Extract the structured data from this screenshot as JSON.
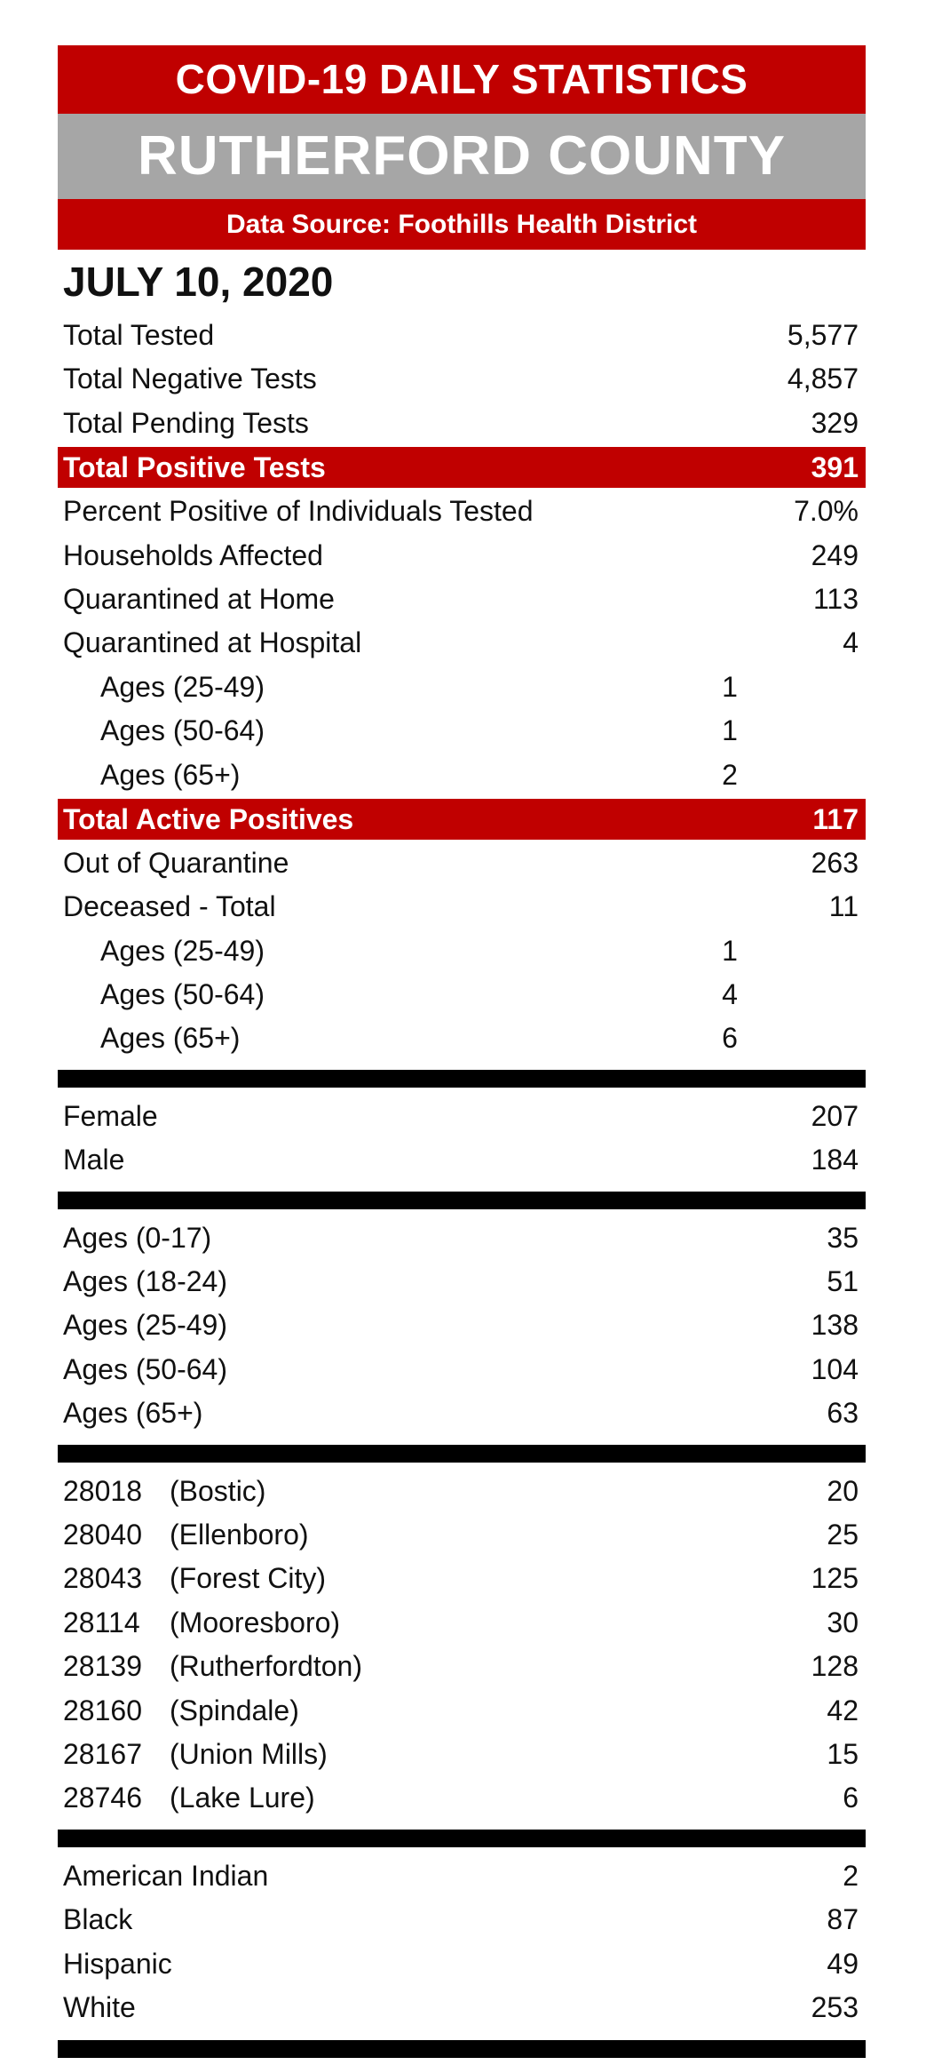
{
  "header": {
    "title": "COVID-19 DAILY STATISTICS",
    "county": "RUTHERFORD COUNTY",
    "source": "Data Source:  Foothills Health District"
  },
  "date": "JULY 10, 2020",
  "testing": [
    {
      "label": "Total Tested",
      "value": "5,577"
    },
    {
      "label": "Total Negative Tests",
      "value": "4,857"
    },
    {
      "label": "Total Pending Tests",
      "value": "329"
    }
  ],
  "total_positive": {
    "label": "Total Positive Tests",
    "value": "391"
  },
  "positive_details": [
    {
      "label": "Percent Positive of Individuals Tested",
      "value": "7.0%"
    },
    {
      "label": "Households Affected",
      "value": "249"
    },
    {
      "label": "Quarantined at Home",
      "value": "113"
    },
    {
      "label": "Quarantined at Hospital",
      "value": "4"
    }
  ],
  "hospital_ages": [
    {
      "label": "Ages (25-49)",
      "value": "1"
    },
    {
      "label": "Ages (50-64)",
      "value": "1"
    },
    {
      "label": "Ages (65+)",
      "value": "2"
    }
  ],
  "total_active": {
    "label": "Total Active Positives",
    "value": "117"
  },
  "outcomes": [
    {
      "label": "Out of Quarantine",
      "value": "263"
    },
    {
      "label": "Deceased - Total",
      "value": "11"
    }
  ],
  "deceased_ages": [
    {
      "label": "Ages (25-49)",
      "value": "1"
    },
    {
      "label": "Ages (50-64)",
      "value": "4"
    },
    {
      "label": "Ages (65+)",
      "value": "6"
    }
  ],
  "sex": [
    {
      "label": "Female",
      "value": "207"
    },
    {
      "label": "Male",
      "value": "184"
    }
  ],
  "age_groups": [
    {
      "label": "Ages (0-17)",
      "value": "35"
    },
    {
      "label": "Ages (18-24)",
      "value": "51"
    },
    {
      "label": "Ages (25-49)",
      "value": "138"
    },
    {
      "label": "Ages (50-64)",
      "value": "104"
    },
    {
      "label": "Ages (65+)",
      "value": "63"
    }
  ],
  "zip_codes": [
    {
      "zip": "28018",
      "place": "(Bostic)",
      "value": "20"
    },
    {
      "zip": "28040",
      "place": "(Ellenboro)",
      "value": "25"
    },
    {
      "zip": "28043",
      "place": "(Forest City)",
      "value": "125"
    },
    {
      "zip": "28114",
      "place": "(Mooresboro)",
      "value": "30"
    },
    {
      "zip": "28139",
      "place": "(Rutherfordton)",
      "value": "128"
    },
    {
      "zip": "28160",
      "place": "(Spindale)",
      "value": "42"
    },
    {
      "zip": "28167",
      "place": "(Union Mills)",
      "value": "15"
    },
    {
      "zip": "28746",
      "place": "(Lake Lure)",
      "value": "6"
    }
  ],
  "race": [
    {
      "label": "American Indian",
      "value": "2"
    },
    {
      "label": "Black",
      "value": "87"
    },
    {
      "label": "Hispanic",
      "value": "49"
    },
    {
      "label": "White",
      "value": "253"
    }
  ],
  "colors": {
    "accent_red": "#c00000",
    "banner_grey": "#a6a6a6",
    "divider": "#000000"
  }
}
